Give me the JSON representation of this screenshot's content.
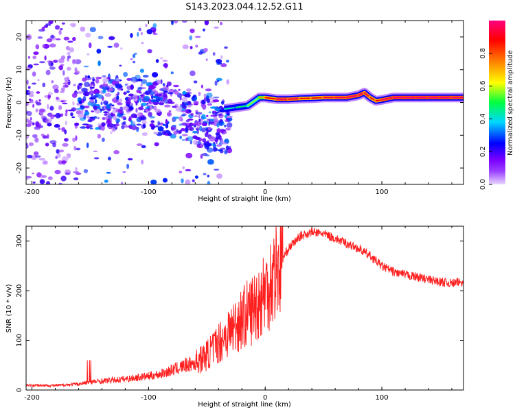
{
  "figure_title": "S143.2023.044.12.52.G11",
  "chart_data": [
    {
      "type": "heatmap",
      "title": "",
      "xlabel": "Height of straight line (km)",
      "ylabel": "Frequency (Hz)",
      "xlim": [
        -205,
        170
      ],
      "ylim": [
        -25,
        25
      ],
      "xticks": [
        -200,
        -100,
        0,
        100
      ],
      "yticks": [
        -20,
        -10,
        0,
        10,
        20
      ],
      "colorbar": {
        "label": "Normalized spectral amplitude",
        "range": [
          0,
          1
        ],
        "ticks": [
          0.0,
          0.2,
          0.4,
          0.6,
          0.8
        ],
        "colormap": [
          "#e8d8ff",
          "#7a00ff",
          "#0000ff",
          "#00e0ff",
          "#00ff40",
          "#ffff00",
          "#ff8000",
          "#ff0000",
          "#ff0080"
        ]
      },
      "ridge": {
        "description": "",
        "x": [
          -35,
          -25,
          -15,
          -5,
          0,
          10,
          20,
          30,
          40,
          50,
          60,
          70,
          80,
          85,
          90,
          95,
          100,
          110,
          120,
          130,
          140,
          150,
          160,
          170
        ],
        "y": [
          -2,
          -1.5,
          -1,
          1.5,
          1.5,
          1,
          1,
          1.2,
          1.3,
          1.5,
          1.5,
          1.5,
          2.2,
          3,
          1.5,
          0.5,
          0.8,
          1.5,
          1.5,
          1.5,
          1.5,
          1.5,
          1.5,
          1.5
        ],
        "amplitude": [
          0.35,
          0.4,
          0.45,
          0.6,
          0.75,
          0.9,
          0.95,
          0.85,
          0.8,
          0.85,
          0.9,
          0.9,
          0.95,
          0.9,
          0.85,
          0.8,
          0.9,
          0.95,
          0.95,
          0.95,
          0.95,
          0.95,
          0.95,
          0.9
        ]
      },
      "scatter_region": {
        "x_range": [
          -205,
          -30
        ],
        "y_range": [
          -25,
          25
        ]
      }
    },
    {
      "type": "line",
      "title": "",
      "xlabel": "Height of straight line (km)",
      "ylabel": "SNR (10 * v/v)",
      "xlim": [
        -205,
        170
      ],
      "ylim": [
        0,
        330
      ],
      "xticks": [
        -200,
        -100,
        0,
        100
      ],
      "yticks": [
        0,
        100,
        200,
        300
      ],
      "color": "#ff2020",
      "series": [
        {
          "x": [
            -205,
            -180,
            -160,
            -150,
            -140,
            -120,
            -100,
            -90,
            -80,
            -70,
            -60,
            -50,
            -40,
            -30,
            -20,
            -10,
            0,
            10,
            20,
            30,
            40,
            50,
            60,
            70,
            80,
            90,
            100,
            110,
            120,
            130,
            140,
            150,
            160,
            170
          ],
          "values": [
            10,
            9,
            12,
            16,
            18,
            22,
            28,
            32,
            40,
            48,
            55,
            70,
            95,
            120,
            145,
            165,
            200,
            245,
            285,
            310,
            318,
            315,
            305,
            295,
            285,
            270,
            250,
            238,
            232,
            228,
            222,
            218,
            215,
            218
          ]
        }
      ]
    }
  ]
}
